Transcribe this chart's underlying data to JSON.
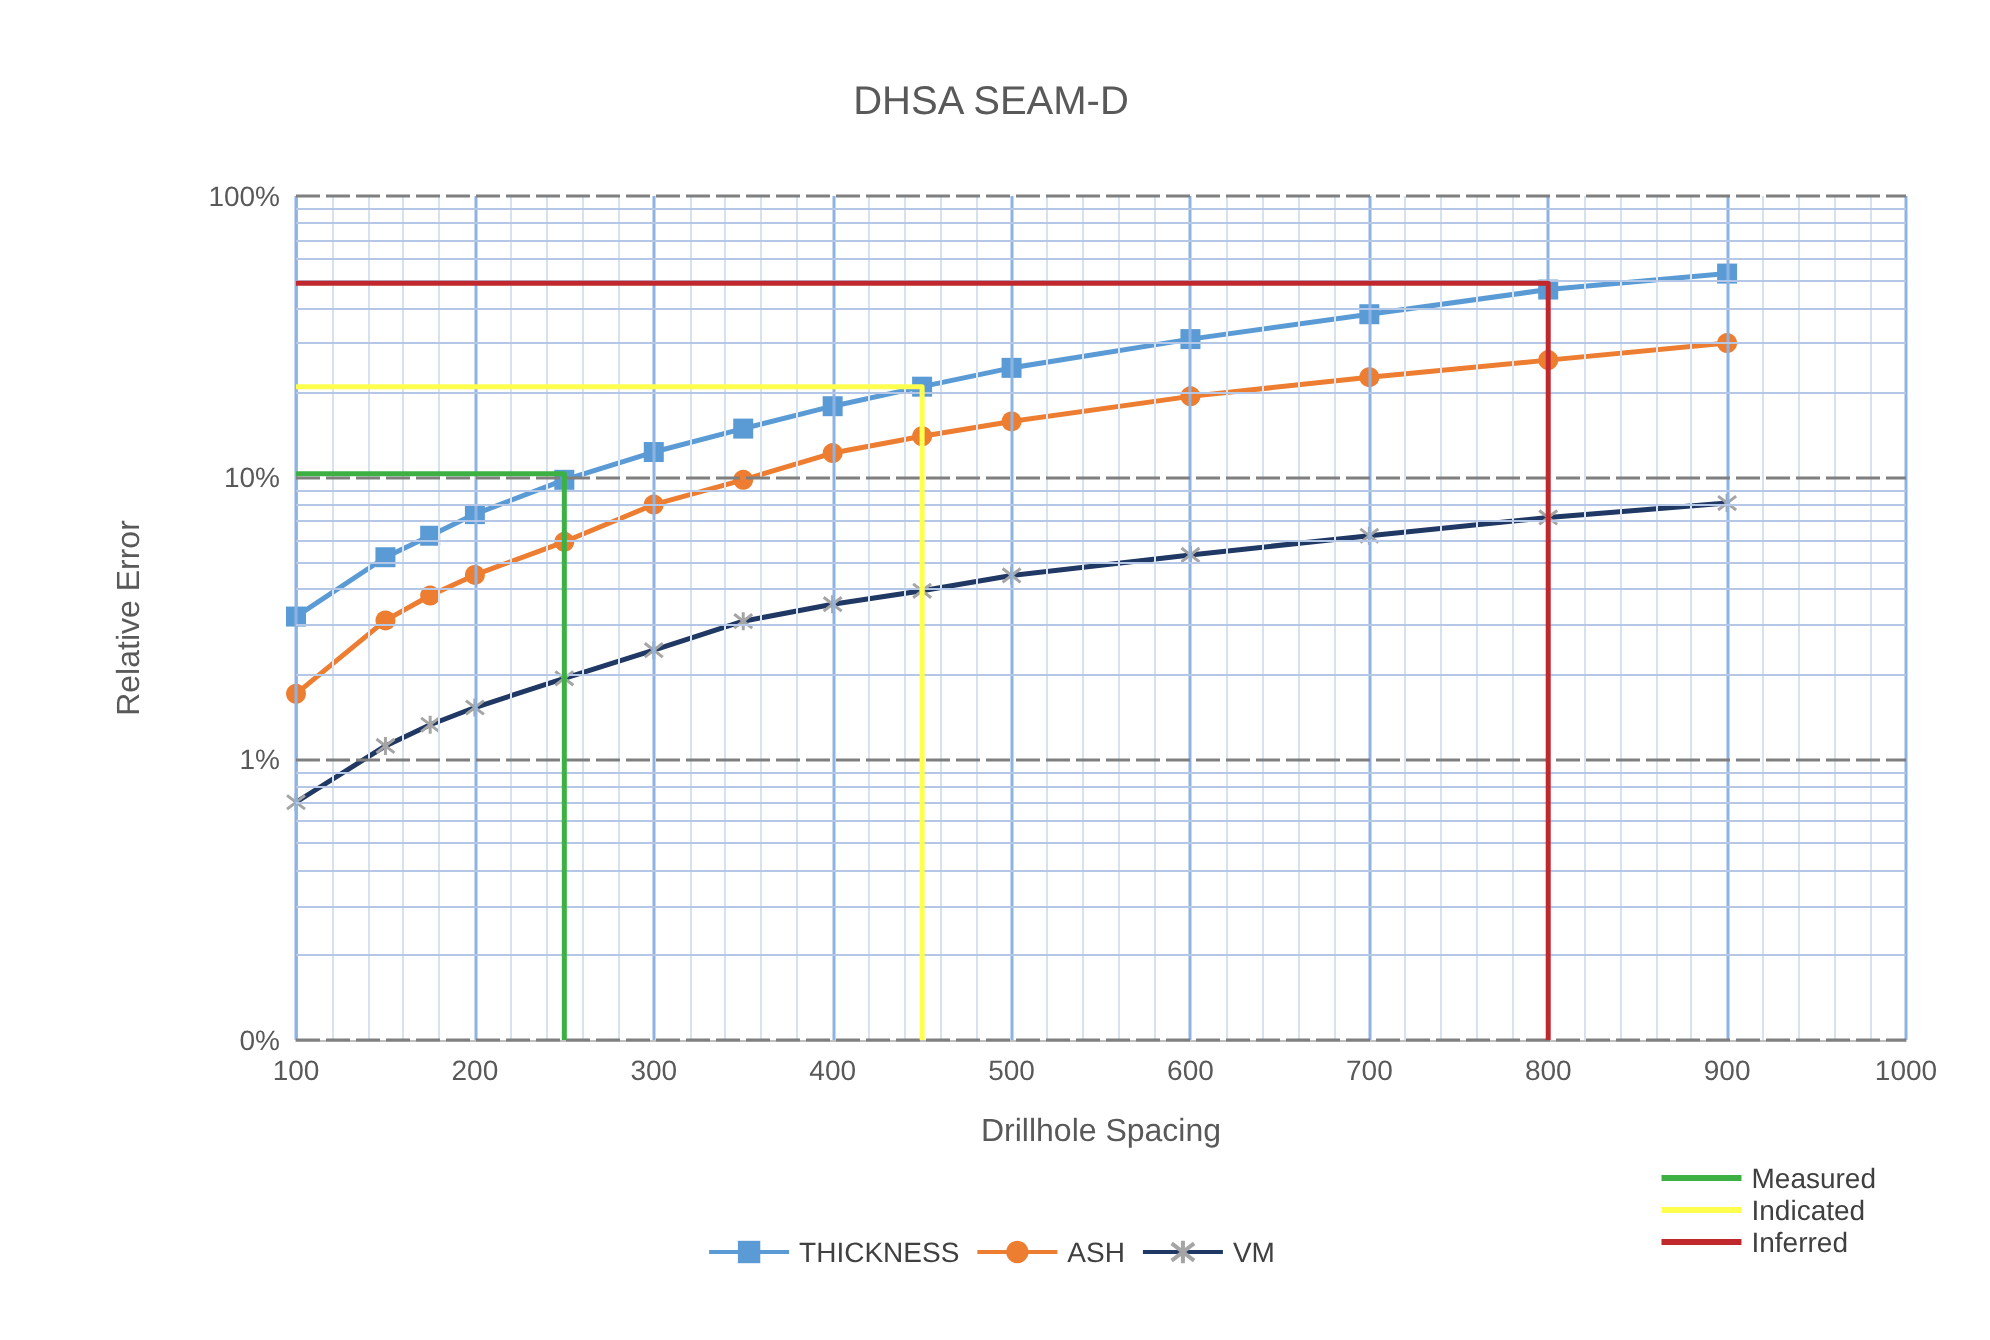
{
  "chart_data": {
    "type": "line",
    "title": "DHSA SEAM-D",
    "xlabel": "Drillhole Spacing",
    "ylabel": "Relative Error",
    "log": "y",
    "grid": true,
    "legend": "bottom",
    "xlim": [
      100,
      1000
    ],
    "xticks": [
      100,
      {
        "value": 120,
        "label": null
      },
      {
        "value": 140,
        "label": null
      },
      {
        "value": 160,
        "label": null
      },
      {
        "value": 180,
        "label": null
      },
      200,
      {
        "value": 220,
        "label": null
      },
      {
        "value": 240,
        "label": null
      },
      {
        "value": 260,
        "label": null
      },
      {
        "value": 280,
        "label": null
      },
      300,
      {
        "value": 320,
        "label": null
      },
      {
        "value": 340,
        "label": null
      },
      {
        "value": 360,
        "label": null
      },
      {
        "value": 380,
        "label": null
      },
      400,
      {
        "value": 420,
        "label": null
      },
      {
        "value": 440,
        "label": null
      },
      {
        "value": 460,
        "label": null
      },
      {
        "value": 480,
        "label": null
      },
      500,
      {
        "value": 520,
        "label": null
      },
      {
        "value": 540,
        "label": null
      },
      {
        "value": 560,
        "label": null
      },
      {
        "value": 580,
        "label": null
      },
      600,
      {
        "value": 620,
        "label": null
      },
      {
        "value": 640,
        "label": null
      },
      {
        "value": 660,
        "label": null
      },
      {
        "value": 680,
        "label": null
      },
      700,
      {
        "value": 720,
        "label": null
      },
      {
        "value": 740,
        "label": null
      },
      {
        "value": 760,
        "label": null
      },
      {
        "value": 780,
        "label": null
      },
      800,
      {
        "value": 820,
        "label": null
      },
      {
        "value": 840,
        "label": null
      },
      {
        "value": 860,
        "label": null
      },
      {
        "value": 880,
        "label": null
      },
      900,
      {
        "value": 920,
        "label": null
      },
      {
        "value": 940,
        "label": null
      },
      {
        "value": 960,
        "label": null
      },
      {
        "value": 980,
        "label": null
      },
      1000
    ],
    "ylim": [
      0.1,
      100
    ],
    "yticks": [
      {
        "value": 0.1,
        "label": "0%"
      },
      {
        "value": 0.2,
        "label": null
      },
      {
        "value": 0.3,
        "label": null
      },
      {
        "value": 0.4,
        "label": null
      },
      {
        "value": 0.5,
        "label": null
      },
      {
        "value": 0.6,
        "label": null
      },
      {
        "value": 0.7,
        "label": null
      },
      {
        "value": 0.8,
        "label": null
      },
      {
        "value": 0.9,
        "label": null
      },
      {
        "value": 1,
        "label": "1%"
      },
      {
        "value": 2,
        "label": null
      },
      {
        "value": 3,
        "label": null
      },
      {
        "value": 4,
        "label": null
      },
      {
        "value": 5,
        "label": null
      },
      {
        "value": 6,
        "label": null
      },
      {
        "value": 7,
        "label": null
      },
      {
        "value": 8,
        "label": null
      },
      {
        "value": 9,
        "label": null
      },
      {
        "value": 10,
        "label": "10%"
      },
      {
        "value": 20,
        "label": null
      },
      {
        "value": 30,
        "label": null
      },
      {
        "value": 40,
        "label": null
      },
      {
        "value": 50,
        "label": null
      },
      {
        "value": 60,
        "label": null
      },
      {
        "value": 70,
        "label": null
      },
      {
        "value": 80,
        "label": null
      },
      {
        "value": 90,
        "label": null
      },
      {
        "value": 100,
        "label": "100%"
      }
    ],
    "x": [
      100,
      150,
      175,
      200,
      250,
      300,
      350,
      400,
      450,
      500,
      600,
      700,
      800,
      900
    ],
    "series": [
      {
        "name": "THICKNESS",
        "color": "#5b9bd5",
        "marker": "square",
        "values": [
          3.2,
          5.2,
          6.2,
          7.4,
          9.8,
          12.3,
          14.9,
          17.9,
          21.0,
          24.5,
          31,
          38,
          46.5,
          53
        ]
      },
      {
        "name": "ASH",
        "color": "#ed7d31",
        "marker": "circle",
        "values": [
          1.7,
          3.1,
          3.8,
          4.5,
          5.9,
          8.0,
          9.8,
          12.2,
          14.0,
          15.8,
          19.4,
          22.7,
          26.1,
          30
        ]
      },
      {
        "name": "VM",
        "color": "#203864",
        "marker": "cross",
        "values": [
          0.7,
          1.11,
          1.32,
          1.52,
          1.93,
          2.43,
          3.08,
          3.54,
          3.95,
          4.48,
          5.3,
          6.2,
          7.2,
          8.1
        ]
      },
      {
        "name": "Measured",
        "color": "#3cb043",
        "marker": "none",
        "x": [
          100,
          250,
          250
        ],
        "values": [
          10.3,
          10.3,
          0.1
        ]
      },
      {
        "name": "Indicated",
        "color": "#ffff4d",
        "marker": "none",
        "x": [
          100,
          450,
          450
        ],
        "values": [
          21,
          21,
          0.1
        ]
      },
      {
        "name": "Inferred",
        "color": "#c0282d",
        "marker": "none",
        "x": [
          100,
          800,
          800
        ],
        "values": [
          49,
          49,
          0.1
        ]
      }
    ]
  }
}
